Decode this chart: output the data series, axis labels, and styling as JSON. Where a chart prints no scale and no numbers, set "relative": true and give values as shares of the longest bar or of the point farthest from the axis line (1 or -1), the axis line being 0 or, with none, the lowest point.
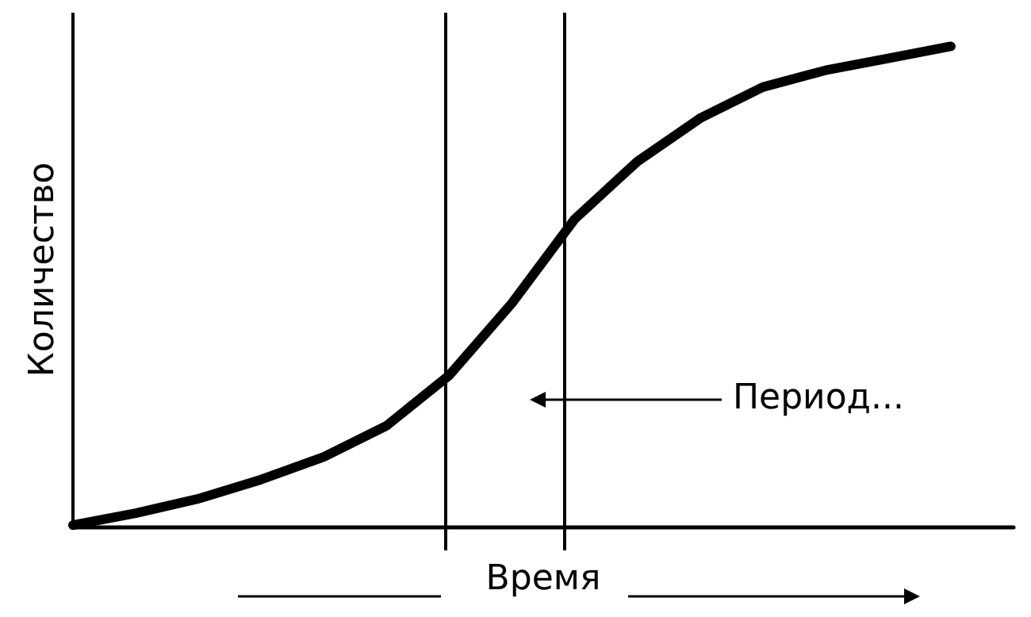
{
  "chart_data": {
    "type": "line",
    "xlabel": "Время",
    "ylabel": "Количество",
    "relative": true,
    "marker": "none",
    "line_style": "solid",
    "categories": [
      null,
      null,
      null,
      null,
      null,
      null,
      null,
      null,
      null,
      null,
      null,
      null,
      null,
      null,
      null,
      null
    ],
    "series": [
      {
        "color": "#000000",
        "values": [
          0.003,
          0.028,
          0.058,
          0.098,
          0.145,
          0.21,
          0.315,
          0.465,
          0.64,
          0.76,
          0.85,
          0.915,
          0.95,
          0.975,
          1.0,
          null
        ]
      }
    ],
    "annotations": [
      "Период..."
    ]
  }
}
